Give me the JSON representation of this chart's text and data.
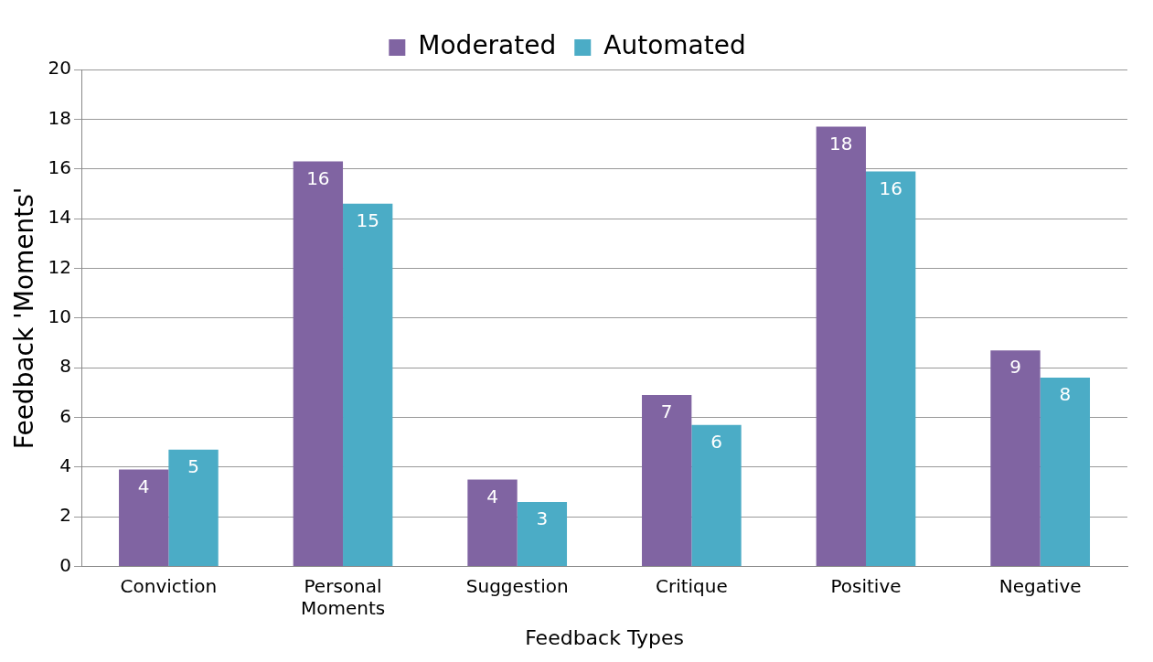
{
  "chart_data": {
    "type": "bar",
    "xlabel": "Feedback Types",
    "ylabel": "Feedback 'Moments'",
    "categories": [
      "Conviction",
      "Personal Moments",
      "Suggestion",
      "Critique",
      "Positive",
      "Negative"
    ],
    "series": [
      {
        "name": "Moderated",
        "color": "#8064a2",
        "values": [
          3.9,
          16.3,
          3.5,
          6.9,
          17.7,
          8.7
        ],
        "value_labels": [
          "4",
          "16",
          "4",
          "7",
          "18",
          "9"
        ]
      },
      {
        "name": "Automated",
        "color": "#4bacc6",
        "values": [
          4.7,
          14.6,
          2.6,
          5.7,
          15.9,
          7.6
        ],
        "value_labels": [
          "5",
          "15",
          "3",
          "6",
          "16",
          "8"
        ]
      }
    ],
    "ylim": [
      0,
      20
    ],
    "yticks": [
      0,
      2,
      4,
      6,
      8,
      10,
      12,
      14,
      16,
      18,
      20
    ],
    "grid": "y",
    "legend": "top"
  }
}
